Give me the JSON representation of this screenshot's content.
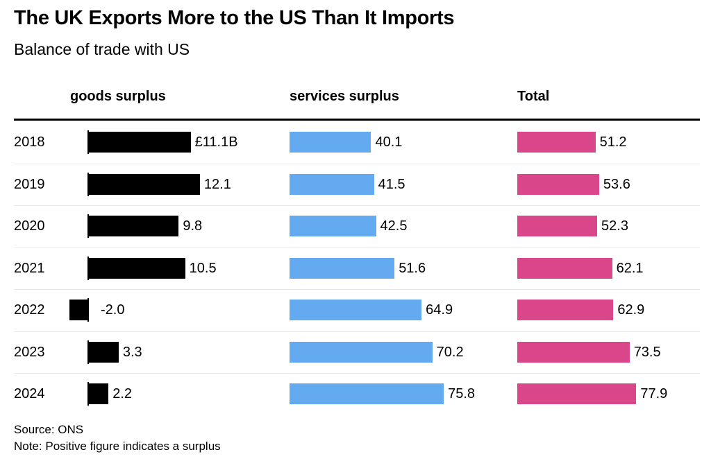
{
  "title": "The UK Exports More to the US Than It Imports",
  "subtitle": "Balance of trade with US",
  "source": "Source: ONS",
  "note": "Note: Positive figure indicates a surplus",
  "colors": {
    "goods": "#000000",
    "services": "#64aaf0",
    "total": "#d9478a"
  },
  "chart_data": {
    "type": "bar",
    "title": "The UK Exports More to the US Than It Imports",
    "subtitle": "Balance of trade with US",
    "categories": [
      "2018",
      "2019",
      "2020",
      "2021",
      "2022",
      "2023",
      "2024"
    ],
    "series": [
      {
        "name": "goods surplus",
        "values": [
          11.1,
          12.1,
          9.8,
          10.5,
          -2.0,
          3.3,
          2.2
        ],
        "labels": [
          "£11.1B",
          "12.1",
          "9.8",
          "10.5",
          "-2.0",
          "3.3",
          "2.2"
        ]
      },
      {
        "name": "services surplus",
        "values": [
          40.1,
          41.5,
          42.5,
          51.6,
          64.9,
          70.2,
          75.8
        ],
        "labels": [
          "40.1",
          "41.5",
          "42.5",
          "51.6",
          "64.9",
          "70.2",
          "75.8"
        ]
      },
      {
        "name": "Total",
        "values": [
          51.2,
          53.6,
          52.3,
          62.1,
          62.9,
          73.5,
          77.9
        ],
        "labels": [
          "51.2",
          "53.6",
          "52.3",
          "62.1",
          "62.9",
          "73.5",
          "77.9"
        ]
      }
    ],
    "unit": "£B",
    "grid": false,
    "legend": "column headers"
  }
}
